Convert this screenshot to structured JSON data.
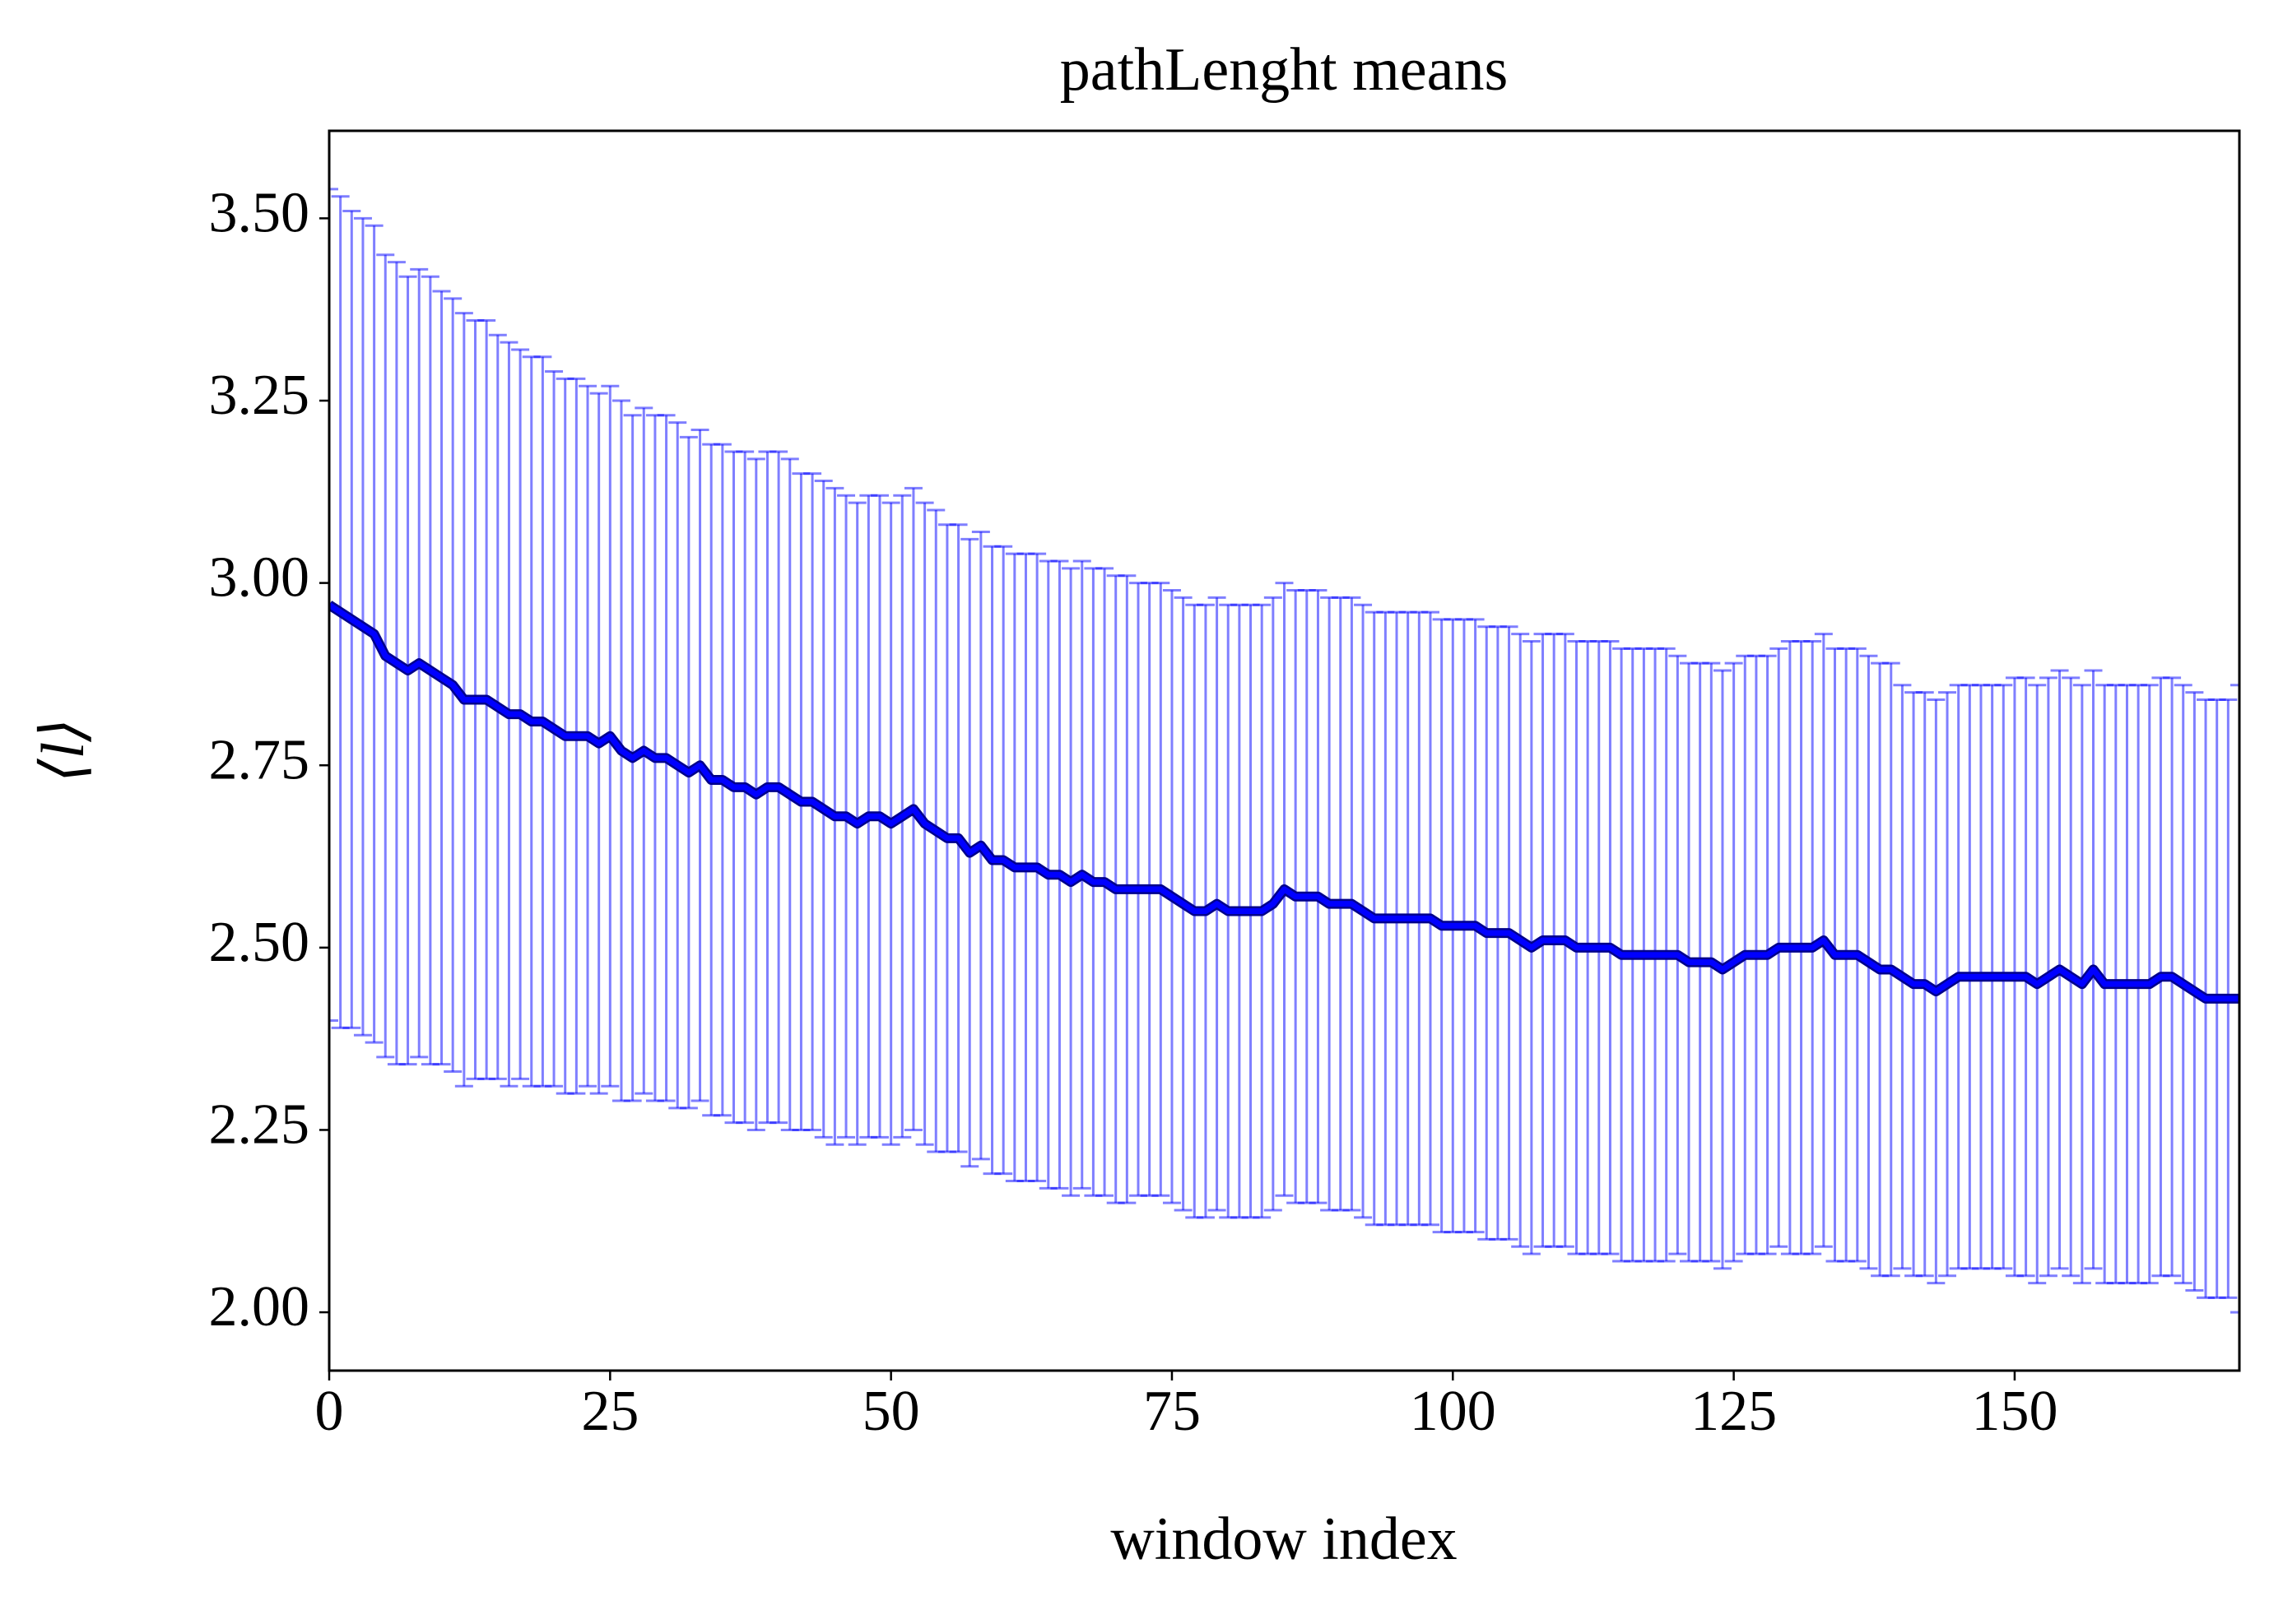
{
  "chart_data": {
    "type": "errorbar_line",
    "title": "pathLenght means",
    "xlabel": "window index",
    "ylabel": "⟨l⟩",
    "x": [
      0,
      1,
      2,
      3,
      4,
      5,
      6,
      7,
      8,
      9,
      10,
      11,
      12,
      13,
      14,
      15,
      16,
      17,
      18,
      19,
      20,
      21,
      22,
      23,
      24,
      25,
      26,
      27,
      28,
      29,
      30,
      31,
      32,
      33,
      34,
      35,
      36,
      37,
      38,
      39,
      40,
      41,
      42,
      43,
      44,
      45,
      46,
      47,
      48,
      49,
      50,
      51,
      52,
      53,
      54,
      55,
      56,
      57,
      58,
      59,
      60,
      61,
      62,
      63,
      64,
      65,
      66,
      67,
      68,
      69,
      70,
      71,
      72,
      73,
      74,
      75,
      76,
      77,
      78,
      79,
      80,
      81,
      82,
      83,
      84,
      85,
      86,
      87,
      88,
      89,
      90,
      91,
      92,
      93,
      94,
      95,
      96,
      97,
      98,
      99,
      100,
      101,
      102,
      103,
      104,
      105,
      106,
      107,
      108,
      109,
      110,
      111,
      112,
      113,
      114,
      115,
      116,
      117,
      118,
      119,
      120,
      121,
      122,
      123,
      124,
      125,
      126,
      127,
      128,
      129,
      130,
      131,
      132,
      133,
      134,
      135,
      136,
      137,
      138,
      139,
      140,
      141,
      142,
      143,
      144,
      145,
      146,
      147,
      148,
      149,
      150,
      151,
      152,
      153,
      154,
      155,
      156,
      157,
      158,
      159,
      160,
      161,
      162,
      163,
      164,
      165,
      166,
      167,
      168,
      169,
      170
    ],
    "series": [
      {
        "color": "#0000ff",
        "values": [
          2.97,
          2.96,
          2.95,
          2.94,
          2.93,
          2.9,
          2.89,
          2.88,
          2.89,
          2.88,
          2.87,
          2.86,
          2.84,
          2.84,
          2.84,
          2.83,
          2.82,
          2.82,
          2.81,
          2.81,
          2.8,
          2.79,
          2.79,
          2.79,
          2.78,
          2.79,
          2.77,
          2.76,
          2.77,
          2.76,
          2.76,
          2.75,
          2.74,
          2.75,
          2.73,
          2.73,
          2.72,
          2.72,
          2.71,
          2.72,
          2.72,
          2.71,
          2.7,
          2.7,
          2.69,
          2.68,
          2.68,
          2.67,
          2.68,
          2.68,
          2.67,
          2.68,
          2.69,
          2.67,
          2.66,
          2.65,
          2.65,
          2.63,
          2.64,
          2.62,
          2.62,
          2.61,
          2.61,
          2.61,
          2.6,
          2.6,
          2.59,
          2.6,
          2.59,
          2.59,
          2.58,
          2.58,
          2.58,
          2.58,
          2.58,
          2.57,
          2.56,
          2.55,
          2.55,
          2.56,
          2.55,
          2.55,
          2.55,
          2.55,
          2.56,
          2.58,
          2.57,
          2.57,
          2.57,
          2.56,
          2.56,
          2.56,
          2.55,
          2.54,
          2.54,
          2.54,
          2.54,
          2.54,
          2.54,
          2.53,
          2.53,
          2.53,
          2.53,
          2.52,
          2.52,
          2.52,
          2.51,
          2.5,
          2.51,
          2.51,
          2.51,
          2.5,
          2.5,
          2.5,
          2.5,
          2.49,
          2.49,
          2.49,
          2.49,
          2.49,
          2.49,
          2.48,
          2.48,
          2.48,
          2.47,
          2.48,
          2.49,
          2.49,
          2.49,
          2.5,
          2.5,
          2.5,
          2.5,
          2.51,
          2.49,
          2.49,
          2.49,
          2.48,
          2.47,
          2.47,
          2.46,
          2.45,
          2.45,
          2.44,
          2.45,
          2.46,
          2.46,
          2.46,
          2.46,
          2.46,
          2.46,
          2.46,
          2.45,
          2.46,
          2.47,
          2.46,
          2.45,
          2.47,
          2.45,
          2.45,
          2.45,
          2.45,
          2.45,
          2.46,
          2.46,
          2.45,
          2.44,
          2.43,
          2.43,
          2.43,
          2.43
        ],
        "errors": [
          0.57,
          0.57,
          0.56,
          0.56,
          0.56,
          0.55,
          0.55,
          0.54,
          0.54,
          0.54,
          0.53,
          0.53,
          0.53,
          0.52,
          0.52,
          0.51,
          0.51,
          0.5,
          0.5,
          0.5,
          0.49,
          0.49,
          0.49,
          0.48,
          0.48,
          0.48,
          0.48,
          0.47,
          0.47,
          0.47,
          0.47,
          0.47,
          0.46,
          0.46,
          0.46,
          0.46,
          0.46,
          0.46,
          0.46,
          0.46,
          0.46,
          0.46,
          0.45,
          0.45,
          0.45,
          0.45,
          0.44,
          0.44,
          0.44,
          0.44,
          0.44,
          0.44,
          0.44,
          0.44,
          0.44,
          0.43,
          0.43,
          0.43,
          0.43,
          0.43,
          0.43,
          0.43,
          0.43,
          0.43,
          0.43,
          0.43,
          0.43,
          0.43,
          0.43,
          0.43,
          0.43,
          0.43,
          0.42,
          0.42,
          0.42,
          0.42,
          0.42,
          0.42,
          0.42,
          0.42,
          0.42,
          0.42,
          0.42,
          0.42,
          0.42,
          0.42,
          0.42,
          0.42,
          0.42,
          0.42,
          0.42,
          0.42,
          0.42,
          0.42,
          0.42,
          0.42,
          0.42,
          0.42,
          0.42,
          0.42,
          0.42,
          0.42,
          0.42,
          0.42,
          0.42,
          0.42,
          0.42,
          0.42,
          0.42,
          0.42,
          0.42,
          0.42,
          0.42,
          0.42,
          0.42,
          0.42,
          0.42,
          0.42,
          0.42,
          0.42,
          0.41,
          0.41,
          0.41,
          0.41,
          0.41,
          0.41,
          0.41,
          0.41,
          0.41,
          0.41,
          0.42,
          0.42,
          0.42,
          0.42,
          0.42,
          0.42,
          0.42,
          0.42,
          0.42,
          0.42,
          0.4,
          0.4,
          0.4,
          0.4,
          0.4,
          0.4,
          0.4,
          0.4,
          0.4,
          0.4,
          0.41,
          0.41,
          0.41,
          0.41,
          0.41,
          0.41,
          0.41,
          0.41,
          0.41,
          0.41,
          0.41,
          0.41,
          0.41,
          0.41,
          0.41,
          0.41,
          0.41,
          0.41,
          0.41,
          0.41,
          0.43
        ]
      }
    ],
    "xlim": [
      0,
      170
    ],
    "ylim": [
      1.92,
      3.62
    ],
    "xticks": [
      0,
      25,
      50,
      75,
      100,
      125,
      150
    ],
    "yticks": [
      {
        "value": 2,
        "label": "2.00"
      },
      {
        "value": 2.25,
        "label": "2.25"
      },
      {
        "value": 2.5,
        "label": "2.50"
      },
      {
        "value": 2.75,
        "label": "2.75"
      },
      {
        "value": 3,
        "label": "3.00"
      },
      {
        "value": 3.25,
        "label": "3.25"
      },
      {
        "value": 3.5,
        "label": "3.50"
      }
    ],
    "grid": false
  }
}
